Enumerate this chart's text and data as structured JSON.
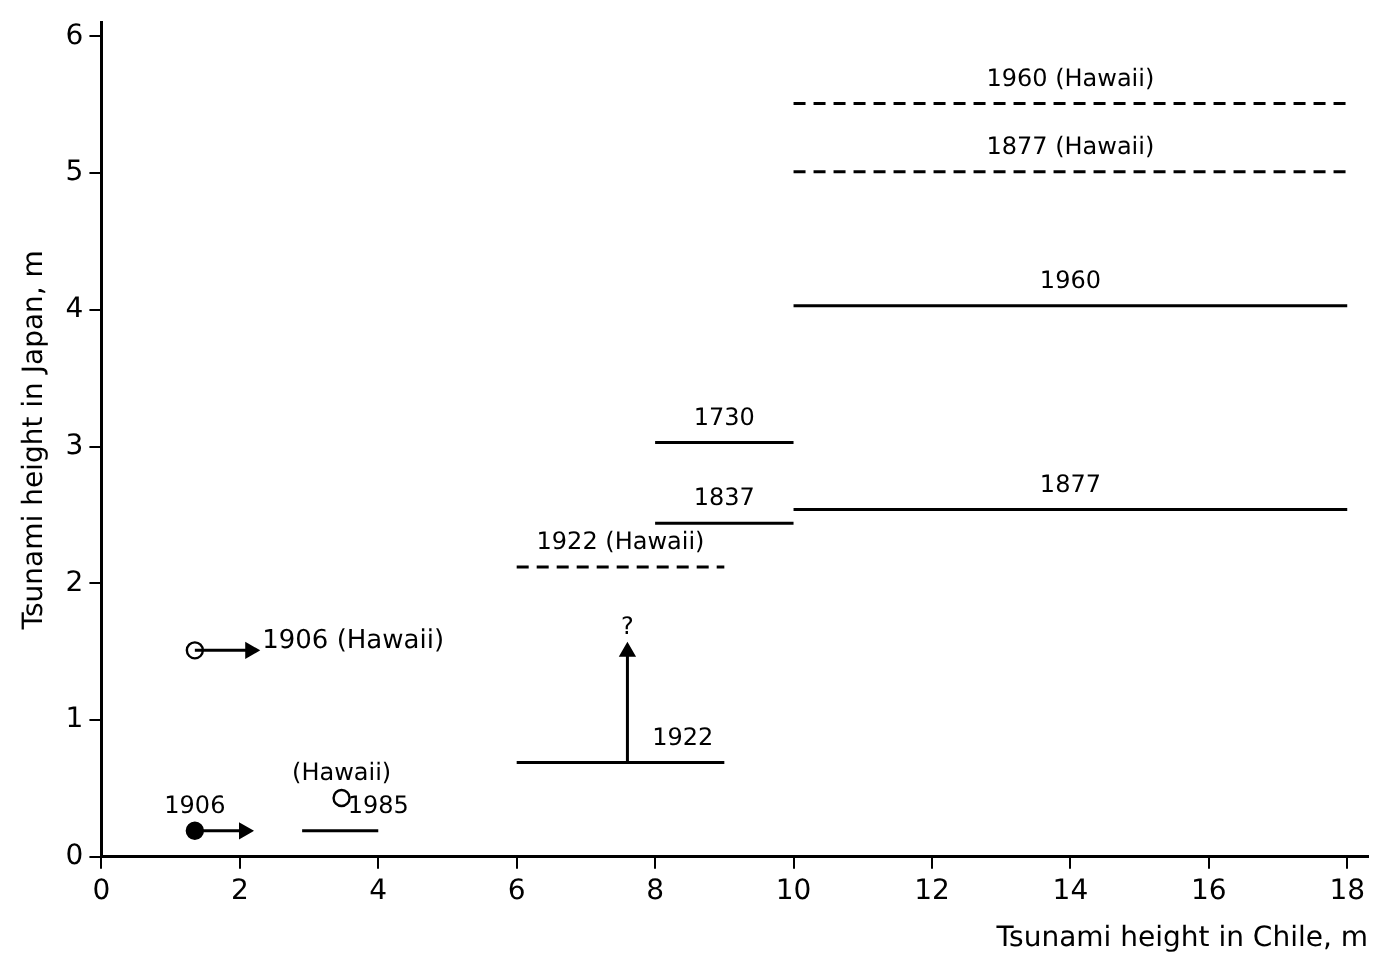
{
  "chart_data": {
    "type": "line",
    "xlabel": "Tsunami height in Chile, m",
    "ylabel": "Tsunami height in Japan, m",
    "xlim": [
      0,
      18.3
    ],
    "ylim": [
      0,
      6.1
    ],
    "xticks": [
      0,
      2,
      4,
      6,
      8,
      10,
      12,
      14,
      16,
      18
    ],
    "yticks": [
      0,
      1,
      2,
      3,
      4,
      5,
      6
    ],
    "grid": false,
    "legend": false,
    "marker": "none",
    "series": [
      {
        "type": "line",
        "color": "#000000",
        "line_style": "dashed",
        "x": [
          10,
          18
        ],
        "values": [
          5.51,
          5.51
        ]
      },
      {
        "type": "line",
        "color": "#000000",
        "line_style": "dashed",
        "x": [
          10,
          18
        ],
        "values": [
          5.01,
          5.01
        ]
      },
      {
        "type": "line",
        "color": "#000000",
        "line_style": "solid",
        "x": [
          10,
          18
        ],
        "values": [
          4.03,
          4.03
        ]
      },
      {
        "type": "line",
        "color": "#000000",
        "line_style": "solid",
        "x": [
          8,
          10
        ],
        "values": [
          3.03,
          3.03
        ]
      },
      {
        "type": "line",
        "color": "#000000",
        "line_style": "solid",
        "x": [
          8,
          10
        ],
        "values": [
          2.44,
          2.44
        ]
      },
      {
        "type": "line",
        "color": "#000000",
        "line_style": "solid",
        "x": [
          10,
          18
        ],
        "values": [
          2.54,
          2.54
        ]
      },
      {
        "type": "line",
        "color": "#000000",
        "line_style": "dashed",
        "x": [
          6,
          9
        ],
        "values": [
          2.12,
          2.12
        ]
      },
      {
        "type": "line",
        "color": "#000000",
        "line_style": "solid",
        "x": [
          6,
          9
        ],
        "values": [
          0.69,
          0.69
        ]
      },
      {
        "type": "line",
        "color": "#000000",
        "line_style": "solid",
        "x": [
          2.9,
          4
        ],
        "values": [
          0.19,
          0.19
        ]
      },
      {
        "type": "line",
        "color": "#000000",
        "marker": "triangle",
        "line_style": "solid",
        "x": [
          7.6,
          7.6
        ],
        "values": [
          0.69,
          1.5
        ]
      },
      {
        "type": "line",
        "name": "1906 (Hawaii)",
        "color": "#000000",
        "marker": "triangle",
        "line_style": "solid",
        "x": [
          1.35,
          2.15
        ],
        "values": [
          1.51,
          1.51
        ]
      },
      {
        "type": "line",
        "color": "#000000",
        "marker": "triangle",
        "line_style": "solid",
        "x": [
          1.35,
          2.06
        ],
        "values": [
          0.19,
          0.19
        ]
      },
      {
        "type": "scatter",
        "color": "#ffffff",
        "marker": "circle",
        "x": [
          1.35,
          3.47
        ],
        "values": [
          1.51,
          0.43
        ]
      },
      {
        "type": "scatter",
        "color": "#000000",
        "marker": "circle",
        "x": [
          1.35
        ],
        "values": [
          0.19
        ]
      }
    ],
    "annotations": [
      {
        "text": "1960 (Hawaii)",
        "x": 14,
        "y": 5.51
      },
      {
        "text": "1877 (Hawaii)",
        "x": 14,
        "y": 5.01
      },
      {
        "text": "1960",
        "x": 14,
        "y": 4.03
      },
      {
        "text": "1730",
        "x": 9,
        "y": 3.03
      },
      {
        "text": "1837",
        "x": 9,
        "y": 2.44
      },
      {
        "text": "1877",
        "x": 14,
        "y": 2.54
      },
      {
        "text": "1922 (Hawaii)",
        "x": 7.5,
        "y": 2.12
      },
      {
        "text": "?",
        "x": 7.6,
        "y": 1.5
      },
      {
        "text": "1922",
        "x": 8.4,
        "y": 0.69
      },
      {
        "text": "(Hawaii)",
        "x": 3.47,
        "y": 0.43
      },
      {
        "text": "1985",
        "x": 4,
        "y": 0.19
      },
      {
        "text": "1906",
        "x": 1.35,
        "y": 0.19
      }
    ]
  }
}
